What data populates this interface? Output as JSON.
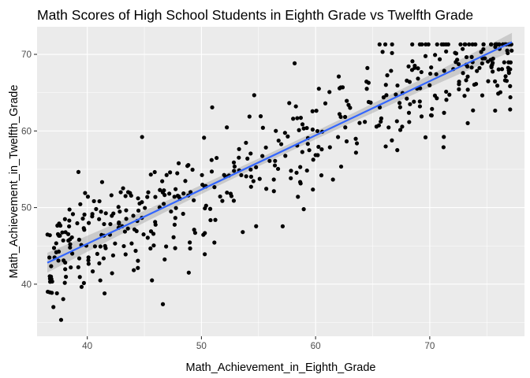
{
  "chart_data": {
    "type": "scatter",
    "title": "Math Scores of High School Students in Eighth Grade vs Twelfth Grade",
    "xlabel": "Math_Achievement_in_Eighth_Grade",
    "ylabel": "Math_Achievement_in_Twelfth_Grade",
    "xlim": [
      35.6,
      78.3
    ],
    "ylim": [
      33.2,
      73.6
    ],
    "x_ticks": [
      40,
      50,
      60,
      70
    ],
    "y_ticks": [
      40,
      50,
      60,
      70
    ],
    "x_tick_labels": [
      "40",
      "50",
      "60",
      "70"
    ],
    "y_tick_labels": [
      "40",
      "50",
      "60",
      "70"
    ],
    "n_points": 500,
    "point_color": "#000000",
    "panel_background": "#ebebeb",
    "grid_color": "#ffffff",
    "fit_line": {
      "method": "linear regression",
      "color": "#3366ff",
      "ribbon_color": "#999999",
      "x_range": [
        36.5,
        77.2
      ],
      "y_start": 42.8,
      "y_end": 71.6,
      "se_halfwidth": [
        1.3,
        0.5,
        1.2
      ]
    }
  }
}
